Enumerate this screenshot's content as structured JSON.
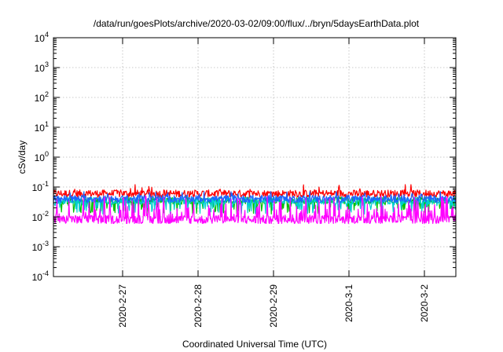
{
  "chart_data": {
    "type": "area",
    "title": "/data/run/goesPlots/archive/2020-03-02/09:00/flux/../bryn/5daysEarthData.plot",
    "xlabel": "Coordinated Universal Time (UTC)",
    "ylabel": "cSv/day",
    "y_scale": "log",
    "ylim": [
      0.0001,
      10000
    ],
    "y_ticks": [
      {
        "base": "10",
        "exp": "-4",
        "value": 0.0001
      },
      {
        "base": "10",
        "exp": "-3",
        "value": 0.001
      },
      {
        "base": "10",
        "exp": "-2",
        "value": 0.01
      },
      {
        "base": "10",
        "exp": "-1",
        "value": 0.1
      },
      {
        "base": "10",
        "exp": "0",
        "value": 1
      },
      {
        "base": "10",
        "exp": "1",
        "value": 10
      },
      {
        "base": "10",
        "exp": "2",
        "value": 100
      },
      {
        "base": "10",
        "exp": "3",
        "value": 1000
      },
      {
        "base": "10",
        "exp": "4",
        "value": 10000
      }
    ],
    "xlim": [
      "2020-02-26 02:00",
      "2020-03-02 10:00"
    ],
    "x_ticks": [
      {
        "label": "2020-2-27",
        "date": "2020-02-27 00:00"
      },
      {
        "label": "2020-2-28",
        "date": "2020-02-28 00:00"
      },
      {
        "label": "2020-2-29",
        "date": "2020-02-29 00:00"
      },
      {
        "label": "2020-3-1",
        "date": "2020-03-01 00:00"
      },
      {
        "label": "2020-3-2",
        "date": "2020-03-02 00:00"
      }
    ],
    "grid": true,
    "legend": "none",
    "series": [
      {
        "color": "#ff0000",
        "typical": 0.06,
        "min": 0.04,
        "max": 0.12
      },
      {
        "color": "#00c000",
        "typical": 0.035,
        "min": 0.012,
        "max": 0.06
      },
      {
        "color": "#00ced1",
        "typical": 0.035,
        "min": 0.012,
        "max": 0.06
      },
      {
        "color": "#1e64ff",
        "typical": 0.04,
        "min": 0.025,
        "max": 0.07
      },
      {
        "color": "#ff00ff",
        "typical": 0.008,
        "min": 0.006,
        "max": 0.05
      }
    ]
  }
}
